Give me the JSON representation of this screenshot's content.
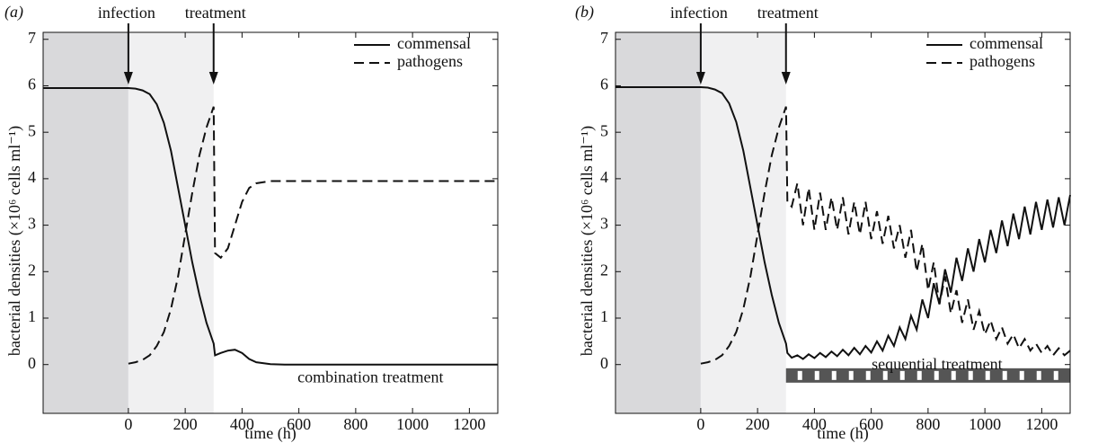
{
  "chart_data": [
    {
      "type": "line",
      "panel_label": "(a)",
      "x_label": "time (h)",
      "y_label": "bacterial densities (×10⁶ cells ml⁻¹)",
      "xlim": [
        -300,
        1300
      ],
      "ylim": [
        -1.05,
        7.15
      ],
      "xticks": [
        0,
        200,
        400,
        600,
        800,
        1000,
        1200
      ],
      "yticks": [
        0,
        1,
        2,
        3,
        4,
        5,
        6,
        7
      ],
      "shading": [
        {
          "from": -300,
          "to": 0,
          "color": "#d9d9db"
        },
        {
          "from": 0,
          "to": 300,
          "color": "#f0f0f1"
        }
      ],
      "arrows": [
        {
          "x": 0,
          "label": "infection"
        },
        {
          "x": 300,
          "label": "treatment"
        }
      ],
      "annotation": "combination treatment",
      "legend": "upper right",
      "x": [
        -300,
        -200,
        -100,
        0,
        25,
        50,
        75,
        100,
        125,
        150,
        175,
        200,
        225,
        250,
        275,
        300,
        305,
        325,
        350,
        375,
        400,
        425,
        450,
        500,
        550,
        600,
        700,
        800,
        900,
        1000,
        1100,
        1200,
        1300
      ],
      "series": [
        {
          "name": "commensal",
          "color": "#111111",
          "style": "solid",
          "values": [
            5.95,
            5.95,
            5.95,
            5.95,
            5.94,
            5.9,
            5.82,
            5.6,
            5.2,
            4.6,
            3.8,
            3.0,
            2.2,
            1.5,
            0.9,
            0.45,
            0.2,
            0.25,
            0.3,
            0.32,
            0.25,
            0.12,
            0.05,
            0.01,
            0,
            0,
            0,
            0,
            0,
            0,
            0,
            0,
            0
          ]
        },
        {
          "name": "pathogens",
          "color": "#111111",
          "style": "dashed",
          "values": [
            null,
            null,
            null,
            0.02,
            0.05,
            0.1,
            0.2,
            0.4,
            0.7,
            1.2,
            1.9,
            2.8,
            3.7,
            4.5,
            5.1,
            5.55,
            2.4,
            2.3,
            2.5,
            3.0,
            3.5,
            3.8,
            3.9,
            3.95,
            3.95,
            3.95,
            3.95,
            3.95,
            3.95,
            3.95,
            3.95,
            3.95,
            3.95
          ]
        }
      ]
    },
    {
      "type": "line",
      "panel_label": "(b)",
      "x_label": "time (h)",
      "y_label": "bacterial densities (×10⁶ cells ml⁻¹)",
      "xlim": [
        -300,
        1300
      ],
      "ylim": [
        -1.05,
        7.15
      ],
      "xticks": [
        0,
        200,
        400,
        600,
        800,
        1000,
        1200
      ],
      "yticks": [
        0,
        1,
        2,
        3,
        4,
        5,
        6,
        7
      ],
      "shading": [
        {
          "from": -300,
          "to": 0,
          "color": "#d9d9db"
        },
        {
          "from": 0,
          "to": 300,
          "color": "#f0f0f1"
        }
      ],
      "arrows": [
        {
          "x": 0,
          "label": "infection"
        },
        {
          "x": 300,
          "label": "treatment"
        }
      ],
      "annotation": "sequential treatment",
      "treatment_bar": [
        300,
        1300
      ],
      "legend": "upper right",
      "x": [
        -300,
        -200,
        -100,
        0,
        25,
        50,
        75,
        100,
        125,
        150,
        175,
        200,
        225,
        250,
        275,
        300,
        305,
        320,
        340,
        360,
        380,
        400,
        420,
        440,
        460,
        480,
        500,
        520,
        540,
        560,
        580,
        600,
        620,
        640,
        660,
        680,
        700,
        720,
        740,
        760,
        780,
        800,
        820,
        840,
        860,
        880,
        900,
        920,
        940,
        960,
        980,
        1000,
        1020,
        1040,
        1060,
        1080,
        1100,
        1120,
        1140,
        1160,
        1180,
        1200,
        1220,
        1240,
        1260,
        1280,
        1300
      ],
      "series": [
        {
          "name": "commensal",
          "color": "#111111",
          "style": "solid",
          "values": [
            5.97,
            5.97,
            5.97,
            5.97,
            5.96,
            5.92,
            5.84,
            5.62,
            5.22,
            4.6,
            3.8,
            3.0,
            2.2,
            1.5,
            0.9,
            0.45,
            0.25,
            0.15,
            0.2,
            0.12,
            0.22,
            0.14,
            0.25,
            0.16,
            0.28,
            0.18,
            0.32,
            0.2,
            0.36,
            0.22,
            0.4,
            0.26,
            0.5,
            0.3,
            0.62,
            0.4,
            0.8,
            0.55,
            1.05,
            0.75,
            1.4,
            1.0,
            1.75,
            1.3,
            2.05,
            1.55,
            2.3,
            1.8,
            2.5,
            2.0,
            2.7,
            2.2,
            2.9,
            2.4,
            3.1,
            2.55,
            3.25,
            2.7,
            3.4,
            2.8,
            3.5,
            2.9,
            3.55,
            2.95,
            3.6,
            3.0,
            3.65
          ]
        },
        {
          "name": "pathogens",
          "color": "#111111",
          "style": "dashed",
          "values": [
            null,
            null,
            null,
            0.02,
            0.05,
            0.1,
            0.2,
            0.4,
            0.7,
            1.2,
            1.9,
            2.8,
            3.7,
            4.5,
            5.1,
            5.55,
            3.5,
            3.4,
            3.9,
            3.0,
            3.8,
            2.9,
            3.7,
            2.9,
            3.6,
            2.9,
            3.6,
            2.8,
            3.5,
            2.8,
            3.5,
            2.7,
            3.3,
            2.6,
            3.2,
            2.5,
            3.0,
            2.3,
            2.9,
            2.0,
            2.6,
            1.6,
            2.2,
            1.3,
            1.9,
            1.1,
            1.6,
            0.9,
            1.4,
            0.75,
            1.15,
            0.65,
            0.95,
            0.55,
            0.8,
            0.45,
            0.65,
            0.35,
            0.55,
            0.3,
            0.45,
            0.25,
            0.4,
            0.2,
            0.35,
            0.2,
            0.3
          ]
        }
      ]
    }
  ]
}
